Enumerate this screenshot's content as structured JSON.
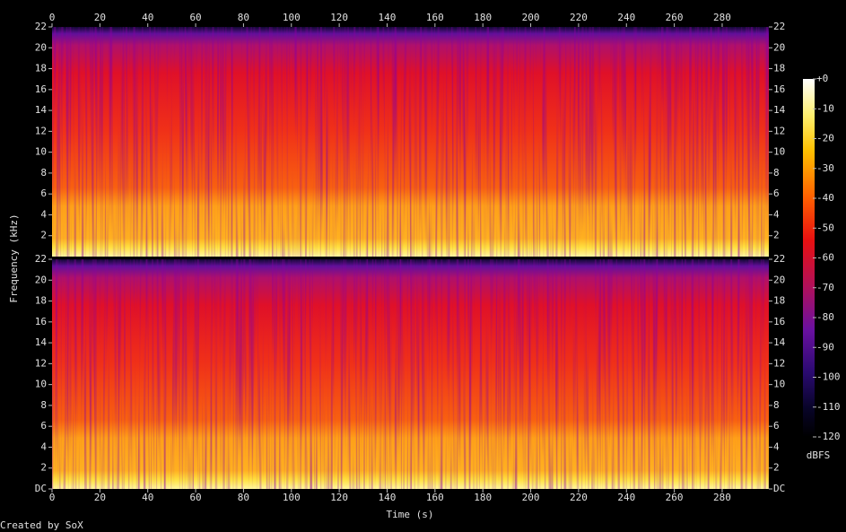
{
  "chart_data": {
    "type": "spectrogram",
    "x_label": "Time (s)",
    "y_label": "Frequency (kHz)",
    "xlim": [
      0,
      299.5
    ],
    "xticks": [
      0,
      20,
      40,
      60,
      80,
      100,
      120,
      140,
      160,
      180,
      200,
      220,
      240,
      260,
      280
    ],
    "channels": [
      {
        "ylim": [
          0,
          22
        ],
        "yticks": [
          2,
          4,
          6,
          8,
          10,
          12,
          14,
          16,
          18,
          20,
          22
        ]
      },
      {
        "ylim": [
          0,
          22
        ],
        "yticks": [
          {
            "value": 0,
            "label": "DC"
          },
          2,
          4,
          6,
          8,
          10,
          12,
          14,
          16,
          18,
          20,
          22
        ]
      }
    ],
    "colorbar": {
      "label": "dBFS",
      "lim": [
        -120,
        0
      ],
      "ticks": [
        {
          "value": 0,
          "label": "+0"
        },
        -10,
        -20,
        -30,
        -40,
        -50,
        -60,
        -70,
        -80,
        -90,
        -100,
        -110,
        -120
      ]
    },
    "credit": "Created by SoX"
  }
}
